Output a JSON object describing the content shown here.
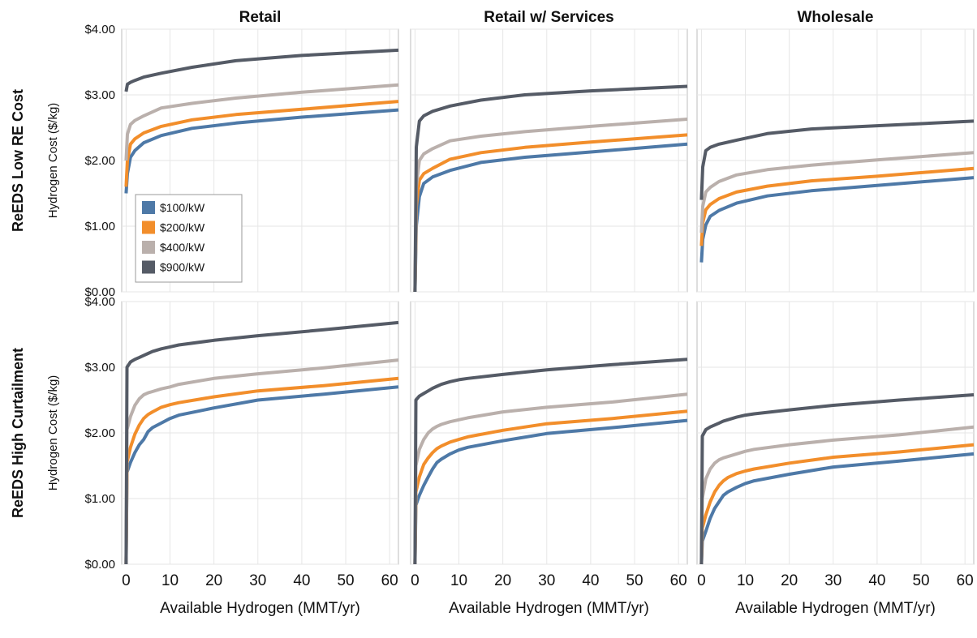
{
  "chart_data": {
    "type": "line",
    "columns": [
      "Retail",
      "Retail w/ Services",
      "Wholesale"
    ],
    "rows": [
      "ReEDS Low RE Cost",
      "ReEDS High Curtailment"
    ],
    "ylabel": "Hydrogen Cost ($/kg)",
    "xlabel": "Available Hydrogen (MMT/yr)",
    "xlim": [
      -1,
      62
    ],
    "ylim": [
      0,
      4.0
    ],
    "xticks": [
      0,
      10,
      20,
      30,
      40,
      50,
      60
    ],
    "yticks": [
      "$0.00",
      "$1.00",
      "$2.00",
      "$3.00",
      "$4.00"
    ],
    "ytick_values": [
      0,
      1,
      2,
      3,
      4
    ],
    "grid": true,
    "legend_location": "lower-left of top-left panel",
    "series_names": [
      "$100/kW",
      "$200/kW",
      "$400/kW",
      "$900/kW"
    ],
    "series_colors": [
      "#4e79a7",
      "#f28e2b",
      "#bab0ac",
      "#555b66"
    ],
    "panels": [
      {
        "row": "ReEDS Low RE Cost",
        "column": "Retail",
        "series": [
          {
            "name": "$100/kW",
            "x": [
              0,
              0.3,
              1,
              2,
              4,
              8,
              15,
              25,
              40,
              62
            ],
            "y": [
              1.5,
              1.8,
              2.05,
              2.15,
              2.27,
              2.38,
              2.49,
              2.57,
              2.66,
              2.77
            ]
          },
          {
            "name": "$200/kW",
            "x": [
              0,
              0.3,
              1,
              2,
              4,
              8,
              15,
              25,
              40,
              62
            ],
            "y": [
              1.6,
              2.0,
              2.25,
              2.33,
              2.42,
              2.52,
              2.62,
              2.7,
              2.78,
              2.9
            ]
          },
          {
            "name": "$400/kW",
            "x": [
              0,
              0.3,
              1,
              2,
              4,
              8,
              15,
              25,
              40,
              62
            ],
            "y": [
              2.0,
              2.4,
              2.55,
              2.61,
              2.68,
              2.8,
              2.87,
              2.95,
              3.04,
              3.15
            ]
          },
          {
            "name": "$900/kW",
            "x": [
              0,
              0.3,
              1,
              2,
              4,
              8,
              15,
              25,
              40,
              62
            ],
            "y": [
              3.05,
              3.16,
              3.19,
              3.22,
              3.27,
              3.33,
              3.42,
              3.52,
              3.6,
              3.68
            ]
          }
        ]
      },
      {
        "row": "ReEDS Low RE Cost",
        "column": "Retail w/ Services",
        "series": [
          {
            "name": "$100/kW",
            "x": [
              0,
              0.3,
              1,
              2,
              4,
              8,
              15,
              25,
              40,
              62
            ],
            "y": [
              0.0,
              1.0,
              1.45,
              1.65,
              1.75,
              1.85,
              1.97,
              2.05,
              2.13,
              2.25
            ]
          },
          {
            "name": "$200/kW",
            "x": [
              0,
              0.3,
              1,
              2,
              4,
              8,
              15,
              25,
              40,
              62
            ],
            "y": [
              0.0,
              1.3,
              1.7,
              1.8,
              1.88,
              2.02,
              2.12,
              2.2,
              2.28,
              2.39
            ]
          },
          {
            "name": "$400/kW",
            "x": [
              0,
              0.3,
              1,
              2,
              4,
              8,
              15,
              25,
              40,
              62
            ],
            "y": [
              0.0,
              1.6,
              2.0,
              2.1,
              2.18,
              2.3,
              2.37,
              2.44,
              2.52,
              2.63
            ]
          },
          {
            "name": "$900/kW",
            "x": [
              0,
              0.3,
              1,
              2,
              4,
              8,
              15,
              25,
              40,
              62
            ],
            "y": [
              0.0,
              2.2,
              2.6,
              2.68,
              2.75,
              2.83,
              2.92,
              3.0,
              3.06,
              3.13
            ]
          }
        ]
      },
      {
        "row": "ReEDS Low RE Cost",
        "column": "Wholesale",
        "series": [
          {
            "name": "$100/kW",
            "x": [
              0,
              0.3,
              1,
              2,
              4,
              8,
              15,
              25,
              40,
              62
            ],
            "y": [
              0.45,
              0.8,
              1.02,
              1.15,
              1.24,
              1.35,
              1.46,
              1.54,
              1.62,
              1.74
            ]
          },
          {
            "name": "$200/kW",
            "x": [
              0,
              0.3,
              1,
              2,
              4,
              8,
              15,
              25,
              40,
              62
            ],
            "y": [
              0.7,
              1.05,
              1.25,
              1.33,
              1.42,
              1.52,
              1.61,
              1.69,
              1.76,
              1.88
            ]
          },
          {
            "name": "$400/kW",
            "x": [
              0,
              0.3,
              1,
              2,
              4,
              8,
              15,
              25,
              40,
              62
            ],
            "y": [
              0.9,
              1.3,
              1.52,
              1.59,
              1.68,
              1.78,
              1.86,
              1.93,
              2.01,
              2.12
            ]
          },
          {
            "name": "$900/kW",
            "x": [
              0,
              0.3,
              1,
              2,
              4,
              8,
              15,
              25,
              40,
              62
            ],
            "y": [
              1.4,
              1.9,
              2.15,
              2.2,
              2.25,
              2.31,
              2.41,
              2.48,
              2.53,
              2.6
            ]
          }
        ]
      },
      {
        "row": "ReEDS High Curtailment",
        "column": "Retail",
        "series": [
          {
            "name": "$100/kW",
            "x": [
              0,
              0.2,
              1,
              2,
              3,
              4,
              5,
              6,
              8,
              10,
              12,
              20,
              30,
              45,
              62
            ],
            "y": [
              0.0,
              1.4,
              1.55,
              1.7,
              1.82,
              1.9,
              2.02,
              2.08,
              2.15,
              2.22,
              2.27,
              2.38,
              2.5,
              2.59,
              2.7
            ]
          },
          {
            "name": "$200/kW",
            "x": [
              0,
              0.2,
              1,
              2,
              3,
              4,
              5,
              6,
              8,
              10,
              12,
              20,
              30,
              45,
              62
            ],
            "y": [
              0.0,
              1.55,
              1.78,
              1.98,
              2.12,
              2.22,
              2.28,
              2.32,
              2.39,
              2.43,
              2.46,
              2.55,
              2.64,
              2.72,
              2.83
            ]
          },
          {
            "name": "$400/kW",
            "x": [
              0,
              0.2,
              1,
              2,
              3,
              4,
              5,
              6,
              8,
              10,
              12,
              20,
              30,
              45,
              62
            ],
            "y": [
              0.0,
              2.05,
              2.25,
              2.42,
              2.52,
              2.58,
              2.61,
              2.63,
              2.67,
              2.7,
              2.74,
              2.83,
              2.9,
              2.99,
              3.11
            ]
          },
          {
            "name": "$900/kW",
            "x": [
              0,
              0.2,
              1,
              2,
              3,
              4,
              5,
              6,
              8,
              10,
              12,
              20,
              30,
              45,
              62
            ],
            "y": [
              0.0,
              3.0,
              3.08,
              3.12,
              3.15,
              3.18,
              3.21,
              3.24,
              3.28,
              3.31,
              3.34,
              3.41,
              3.48,
              3.57,
              3.68
            ]
          }
        ]
      },
      {
        "row": "ReEDS High Curtailment",
        "column": "Retail w/ Services",
        "series": [
          {
            "name": "$100/kW",
            "x": [
              0,
              0.2,
              1,
              2,
              3,
              4,
              5,
              6,
              8,
              10,
              12,
              20,
              30,
              45,
              62
            ],
            "y": [
              0.0,
              0.9,
              1.05,
              1.2,
              1.33,
              1.45,
              1.55,
              1.6,
              1.68,
              1.74,
              1.78,
              1.88,
              1.99,
              2.08,
              2.19
            ]
          },
          {
            "name": "$200/kW",
            "x": [
              0,
              0.2,
              1,
              2,
              3,
              4,
              5,
              6,
              8,
              10,
              12,
              20,
              30,
              45,
              62
            ],
            "y": [
              0.0,
              1.1,
              1.33,
              1.52,
              1.62,
              1.7,
              1.76,
              1.8,
              1.86,
              1.9,
              1.94,
              2.04,
              2.14,
              2.22,
              2.33
            ]
          },
          {
            "name": "$400/kW",
            "x": [
              0,
              0.2,
              1,
              2,
              3,
              4,
              5,
              6,
              8,
              10,
              12,
              20,
              30,
              45,
              62
            ],
            "y": [
              0.0,
              1.5,
              1.75,
              1.9,
              2.0,
              2.06,
              2.1,
              2.13,
              2.17,
              2.2,
              2.23,
              2.32,
              2.39,
              2.47,
              2.59
            ]
          },
          {
            "name": "$900/kW",
            "x": [
              0,
              0.2,
              1,
              2,
              3,
              4,
              5,
              6,
              8,
              10,
              12,
              20,
              30,
              45,
              62
            ],
            "y": [
              0.0,
              2.5,
              2.56,
              2.6,
              2.64,
              2.68,
              2.71,
              2.74,
              2.78,
              2.81,
              2.83,
              2.89,
              2.96,
              3.04,
              3.12
            ]
          }
        ]
      },
      {
        "row": "ReEDS High Curtailment",
        "column": "Wholesale",
        "series": [
          {
            "name": "$100/kW",
            "x": [
              0,
              0.2,
              1,
              2,
              3,
              4,
              5,
              6,
              8,
              10,
              12,
              20,
              30,
              45,
              62
            ],
            "y": [
              0.0,
              0.35,
              0.5,
              0.7,
              0.85,
              0.95,
              1.05,
              1.1,
              1.17,
              1.23,
              1.27,
              1.37,
              1.48,
              1.57,
              1.68
            ]
          },
          {
            "name": "$200/kW",
            "x": [
              0,
              0.2,
              1,
              2,
              3,
              4,
              5,
              6,
              8,
              10,
              12,
              20,
              30,
              45,
              62
            ],
            "y": [
              0.0,
              0.55,
              0.75,
              0.95,
              1.1,
              1.2,
              1.27,
              1.32,
              1.38,
              1.42,
              1.45,
              1.54,
              1.63,
              1.71,
              1.82
            ]
          },
          {
            "name": "$400/kW",
            "x": [
              0,
              0.2,
              1,
              2,
              3,
              4,
              5,
              6,
              8,
              10,
              12,
              20,
              30,
              45,
              62
            ],
            "y": [
              0.0,
              1.0,
              1.3,
              1.45,
              1.54,
              1.59,
              1.62,
              1.64,
              1.68,
              1.72,
              1.75,
              1.82,
              1.89,
              1.97,
              2.09
            ]
          },
          {
            "name": "$900/kW",
            "x": [
              0,
              0.2,
              1,
              2,
              3,
              4,
              5,
              6,
              8,
              10,
              12,
              20,
              30,
              45,
              62
            ],
            "y": [
              0.0,
              1.95,
              2.05,
              2.09,
              2.12,
              2.15,
              2.18,
              2.2,
              2.24,
              2.27,
              2.29,
              2.35,
              2.42,
              2.5,
              2.58
            ]
          }
        ]
      }
    ]
  }
}
